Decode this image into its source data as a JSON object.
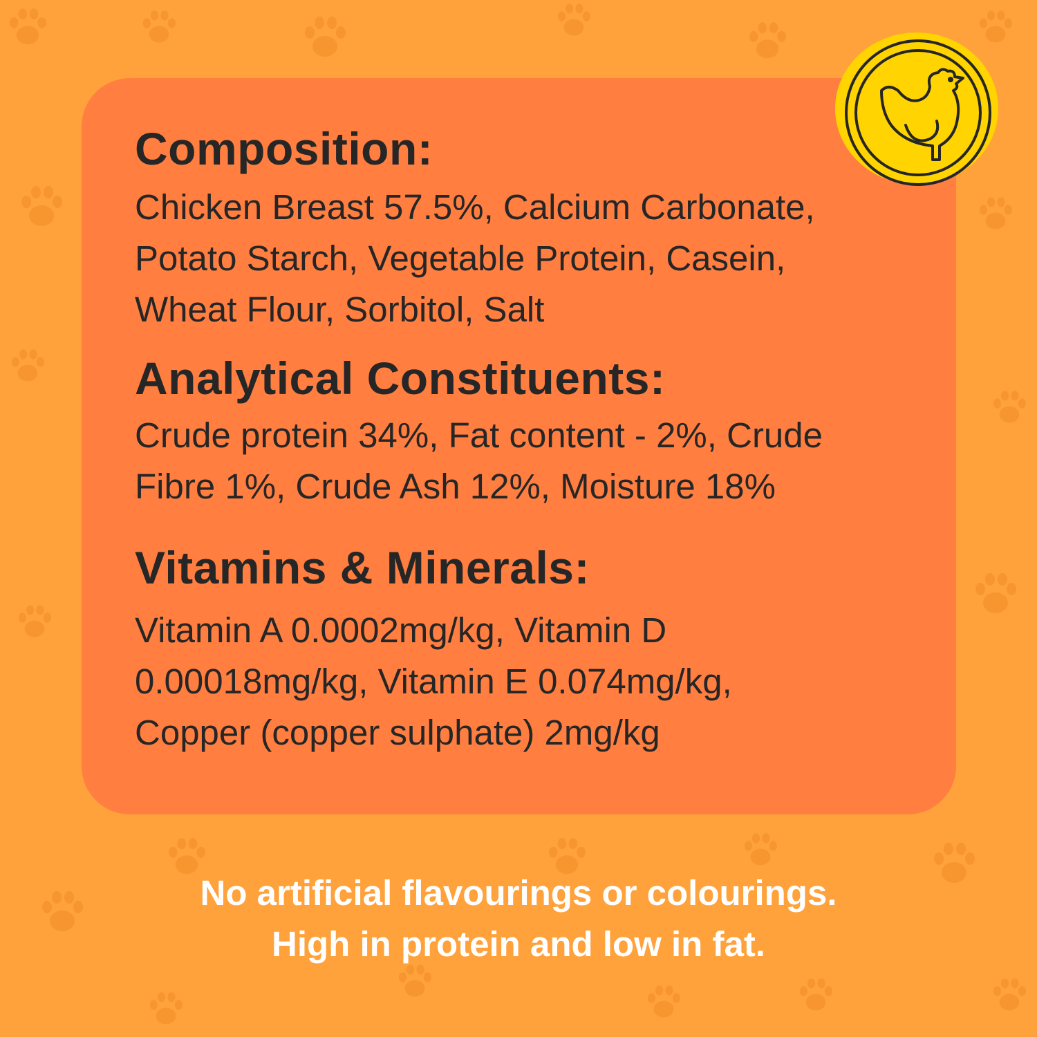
{
  "colors": {
    "background": "#FFA23B",
    "card": "#FF7E40",
    "text": "#262626",
    "badge": "#FFD400",
    "footer_text": "#FFFFFF"
  },
  "badge": {
    "icon": "chicken-icon"
  },
  "sections": [
    {
      "heading": "Composition:",
      "lines": [
        "Chicken Breast 57.5%, Calcium Carbonate,",
        "Potato Starch, Vegetable Protein, Casein,",
        "Wheat Flour, Sorbitol, Salt"
      ]
    },
    {
      "heading": "Analytical Constituents:",
      "lines": [
        "Crude protein 34%, Fat content - 2%, Crude",
        "Fibre 1%, Crude Ash 12%, Moisture 18%"
      ]
    },
    {
      "heading": "Vitamins & Minerals:",
      "lines": [
        "Vitamin A 0.0002mg/kg, Vitamin D",
        "0.00018mg/kg, Vitamin E 0.074mg/kg,",
        "Copper (copper sulphate) 2mg/kg"
      ]
    }
  ],
  "footer": {
    "lines": [
      "No artificial flavourings or colourings.",
      "High in protein and low in fat."
    ]
  }
}
